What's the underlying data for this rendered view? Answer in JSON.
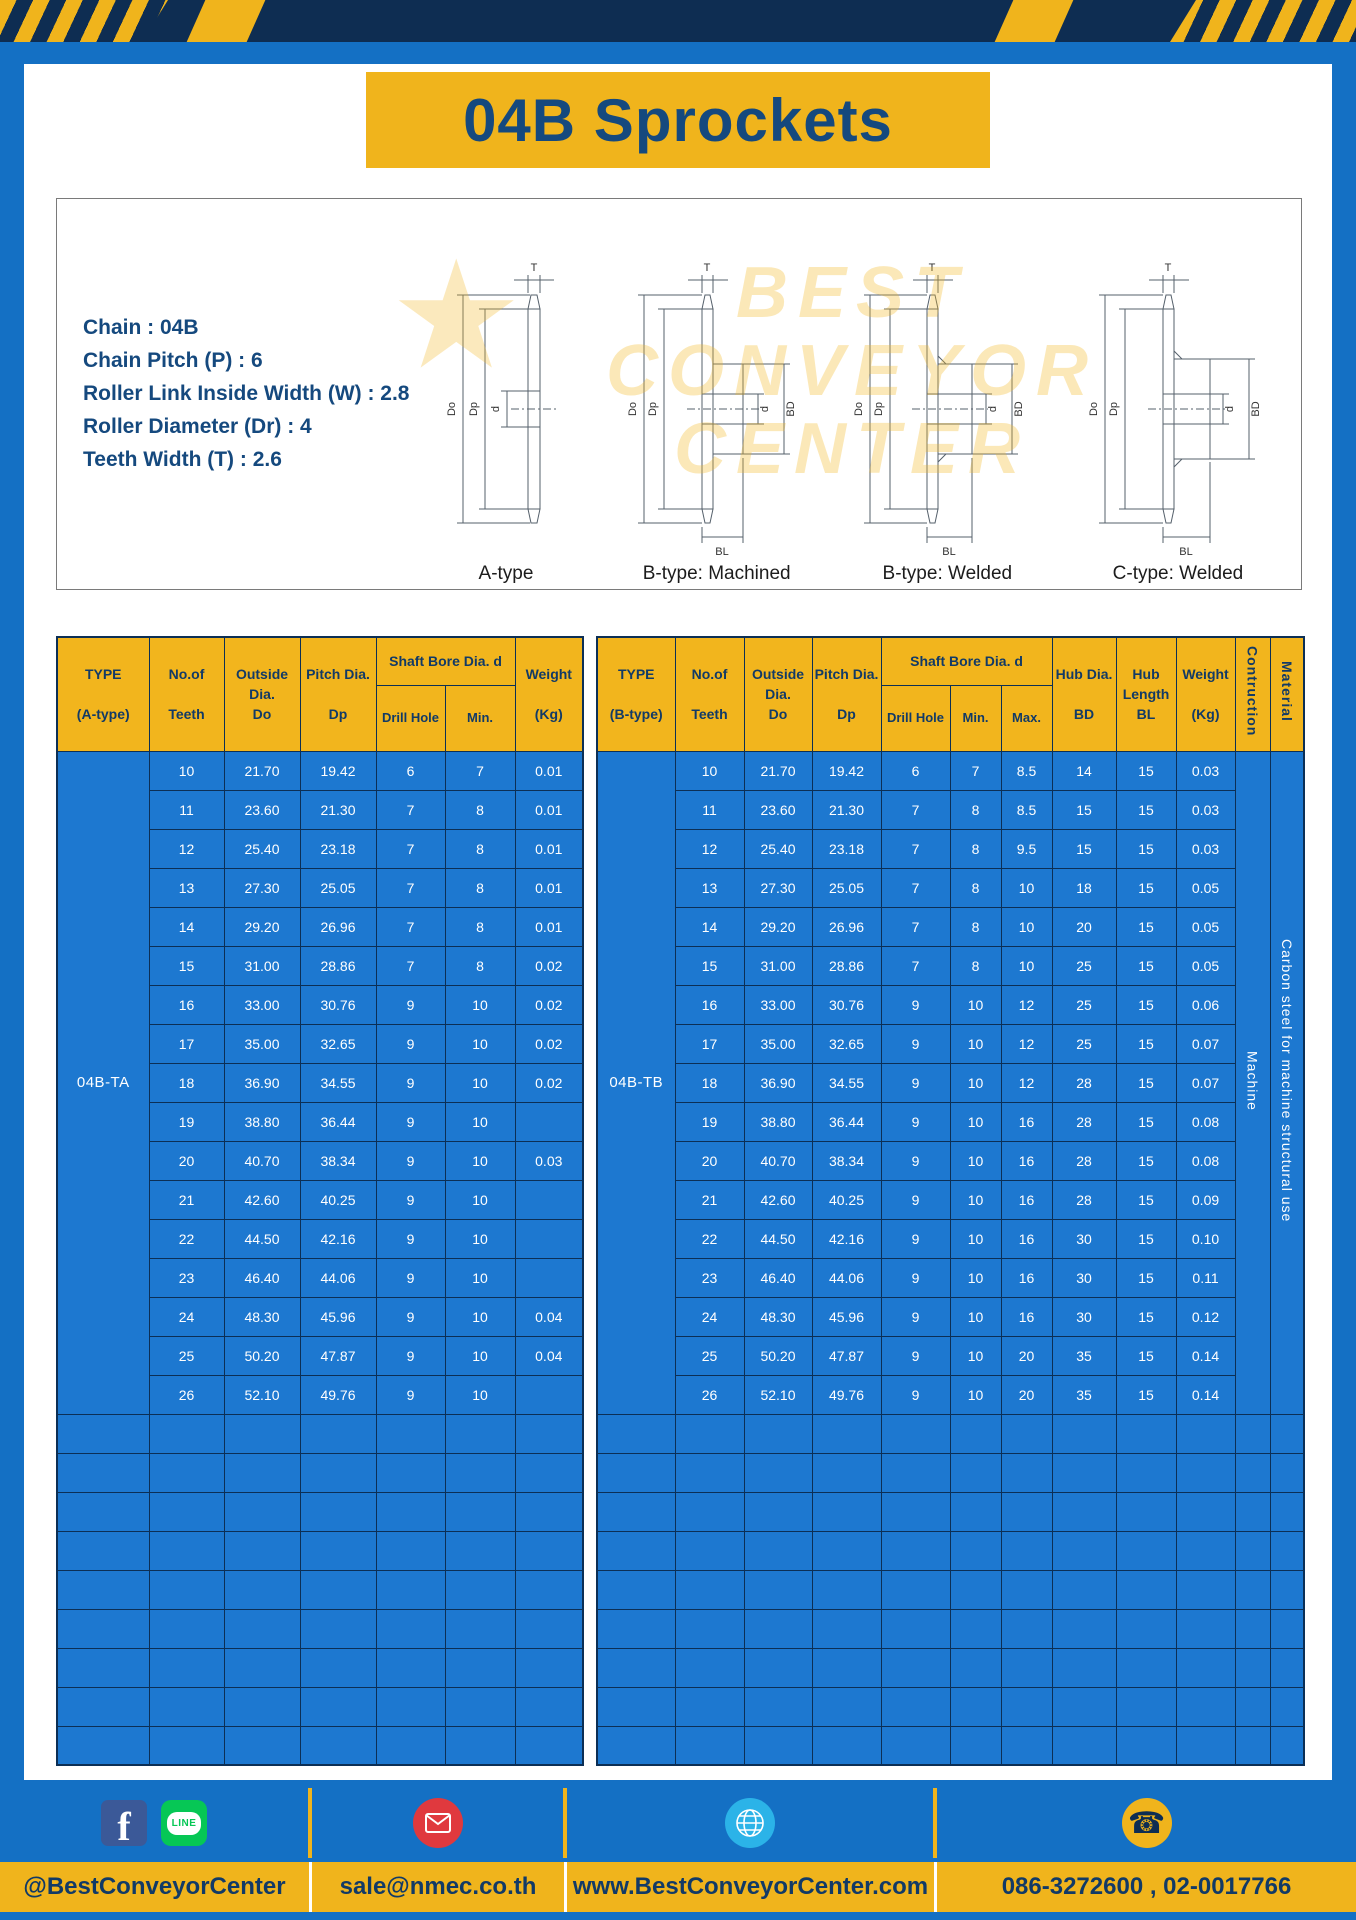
{
  "header": {
    "title": "04B Sprockets"
  },
  "specs": {
    "lines": [
      "Chain : 04B",
      "Chain Pitch (P) : 6",
      "Roller Link Inside Width (W) : 2.8",
      "Roller Diameter (Dr) : 4",
      "Teeth Width (T) : 2.6"
    ]
  },
  "diagram": {
    "watermark": [
      "BEST",
      "CONVEYOR",
      "CENTER"
    ],
    "watermark_star": "★",
    "captions": [
      "A-type",
      "B-type: Machined",
      "B-type: Welded",
      "C-type: Welded"
    ],
    "dims": {
      "T": "T",
      "Do": "Do",
      "Dp": "Dp",
      "d": "d",
      "BD": "BD",
      "BL": "BL"
    }
  },
  "table_a": {
    "type_value": "04B-TA",
    "headers": {
      "type": "TYPE\n\n(A-type)",
      "teeth": "No.of\n\nTeeth",
      "outside": "Outside\nDia.\nDo",
      "pitch": "Pitch Dia.\n\nDp",
      "shaft_bore": "Shaft Bore Dia. d",
      "drill": "Drill Hole",
      "min": "Min.",
      "weight": "Weight\n\n(Kg)"
    },
    "rows": [
      [
        "10",
        "21.70",
        "19.42",
        "6",
        "7",
        "0.01"
      ],
      [
        "11",
        "23.60",
        "21.30",
        "7",
        "8",
        "0.01"
      ],
      [
        "12",
        "25.40",
        "23.18",
        "7",
        "8",
        "0.01"
      ],
      [
        "13",
        "27.30",
        "25.05",
        "7",
        "8",
        "0.01"
      ],
      [
        "14",
        "29.20",
        "26.96",
        "7",
        "8",
        "0.01"
      ],
      [
        "15",
        "31.00",
        "28.86",
        "7",
        "8",
        "0.02"
      ],
      [
        "16",
        "33.00",
        "30.76",
        "9",
        "10",
        "0.02"
      ],
      [
        "17",
        "35.00",
        "32.65",
        "9",
        "10",
        "0.02"
      ],
      [
        "18",
        "36.90",
        "34.55",
        "9",
        "10",
        "0.02"
      ],
      [
        "19",
        "38.80",
        "36.44",
        "9",
        "10",
        ""
      ],
      [
        "20",
        "40.70",
        "38.34",
        "9",
        "10",
        "0.03"
      ],
      [
        "21",
        "42.60",
        "40.25",
        "9",
        "10",
        ""
      ],
      [
        "22",
        "44.50",
        "42.16",
        "9",
        "10",
        ""
      ],
      [
        "23",
        "46.40",
        "44.06",
        "9",
        "10",
        ""
      ],
      [
        "24",
        "48.30",
        "45.96",
        "9",
        "10",
        "0.04"
      ],
      [
        "25",
        "50.20",
        "47.87",
        "9",
        "10",
        "0.04"
      ],
      [
        "26",
        "52.10",
        "49.76",
        "9",
        "10",
        ""
      ]
    ],
    "empty_rows": 9
  },
  "table_b": {
    "type_value": "04B-TB",
    "headers": {
      "type": "TYPE\n\n(B-type)",
      "teeth": "No.of\n\nTeeth",
      "outside": "Outside\nDia.\nDo",
      "pitch": "Pitch Dia.\n\nDp",
      "shaft_bore": "Shaft Bore Dia. d",
      "drill": "Drill Hole",
      "min": "Min.",
      "max": "Max.",
      "hub_dia": "Hub Dia.\n\nBD",
      "hub_len": "Hub\nLength\nBL",
      "weight": "Weight\n\n(Kg)",
      "construction": "Contruction",
      "material": "Material"
    },
    "construction_value": "Machine",
    "material_value": "Carbon steel for machine structural use",
    "rows": [
      [
        "10",
        "21.70",
        "19.42",
        "6",
        "7",
        "8.5",
        "14",
        "15",
        "0.03"
      ],
      [
        "11",
        "23.60",
        "21.30",
        "7",
        "8",
        "8.5",
        "15",
        "15",
        "0.03"
      ],
      [
        "12",
        "25.40",
        "23.18",
        "7",
        "8",
        "9.5",
        "15",
        "15",
        "0.03"
      ],
      [
        "13",
        "27.30",
        "25.05",
        "7",
        "8",
        "10",
        "18",
        "15",
        "0.05"
      ],
      [
        "14",
        "29.20",
        "26.96",
        "7",
        "8",
        "10",
        "20",
        "15",
        "0.05"
      ],
      [
        "15",
        "31.00",
        "28.86",
        "7",
        "8",
        "10",
        "25",
        "15",
        "0.05"
      ],
      [
        "16",
        "33.00",
        "30.76",
        "9",
        "10",
        "12",
        "25",
        "15",
        "0.06"
      ],
      [
        "17",
        "35.00",
        "32.65",
        "9",
        "10",
        "12",
        "25",
        "15",
        "0.07"
      ],
      [
        "18",
        "36.90",
        "34.55",
        "9",
        "10",
        "12",
        "28",
        "15",
        "0.07"
      ],
      [
        "19",
        "38.80",
        "36.44",
        "9",
        "10",
        "16",
        "28",
        "15",
        "0.08"
      ],
      [
        "20",
        "40.70",
        "38.34",
        "9",
        "10",
        "16",
        "28",
        "15",
        "0.08"
      ],
      [
        "21",
        "42.60",
        "40.25",
        "9",
        "10",
        "16",
        "28",
        "15",
        "0.09"
      ],
      [
        "22",
        "44.50",
        "42.16",
        "9",
        "10",
        "16",
        "30",
        "15",
        "0.10"
      ],
      [
        "23",
        "46.40",
        "44.06",
        "9",
        "10",
        "16",
        "30",
        "15",
        "0.11"
      ],
      [
        "24",
        "48.30",
        "45.96",
        "9",
        "10",
        "16",
        "30",
        "15",
        "0.12"
      ],
      [
        "25",
        "50.20",
        "47.87",
        "9",
        "10",
        "20",
        "35",
        "15",
        "0.14"
      ],
      [
        "26",
        "52.10",
        "49.76",
        "9",
        "10",
        "20",
        "35",
        "15",
        "0.14"
      ]
    ],
    "empty_rows": 9
  },
  "footer": {
    "items": [
      {
        "icons": [
          "facebook-icon",
          "line-icon"
        ],
        "text": "@BestConveyorCenter"
      },
      {
        "icons": [
          "email-icon"
        ],
        "text": "sale@nmec.co.th"
      },
      {
        "icons": [
          "globe-icon"
        ],
        "text": "www.BestConveyorCenter.com"
      },
      {
        "icons": [
          "phone-icon"
        ],
        "text": "086-3272600 , 02-0017766"
      }
    ],
    "facebook_glyph": "f",
    "line_label": "LINE",
    "phone_glyph": "☎"
  },
  "colors": {
    "page_blue": "#1470c4",
    "navy": "#0e2d52",
    "yellow": "#f0b41c",
    "row_blue": "#1d78d0",
    "title_navy": "#15497e",
    "line_green": "#06c755",
    "facebook_blue": "#3b5998",
    "mail_red": "#e0393e",
    "globe_blue": "#2bb3e8"
  }
}
